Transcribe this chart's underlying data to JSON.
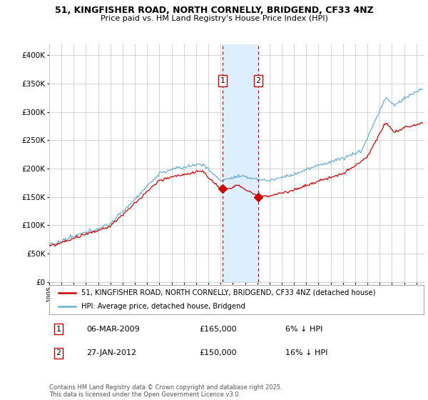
{
  "title_line1": "51, KINGFISHER ROAD, NORTH CORNELLY, BRIDGEND, CF33 4NZ",
  "title_line2": "Price paid vs. HM Land Registry's House Price Index (HPI)",
  "legend_line1": "51, KINGFISHER ROAD, NORTH CORNELLY, BRIDGEND, CF33 4NZ (detached house)",
  "legend_line2": "HPI: Average price, detached house, Bridgend",
  "transaction1_date": "06-MAR-2009",
  "transaction1_price": "£165,000",
  "transaction1_hpi": "6% ↓ HPI",
  "transaction2_date": "27-JAN-2012",
  "transaction2_price": "£150,000",
  "transaction2_hpi": "16% ↓ HPI",
  "footnote": "Contains HM Land Registry data © Crown copyright and database right 2025.\nThis data is licensed under the Open Government Licence v3.0.",
  "hpi_color": "#6baed6",
  "price_color": "#cc0000",
  "shaded_region_color": "#ddeeff",
  "grid_color": "#cccccc",
  "background_color": "#ffffff",
  "ylim": [
    0,
    420000
  ],
  "yticks": [
    0,
    50000,
    100000,
    150000,
    200000,
    250000,
    300000,
    350000,
    400000
  ],
  "transaction1_year": 2009.17,
  "transaction2_year": 2012.07,
  "transaction1_price_val": 165000,
  "transaction2_price_val": 150000
}
